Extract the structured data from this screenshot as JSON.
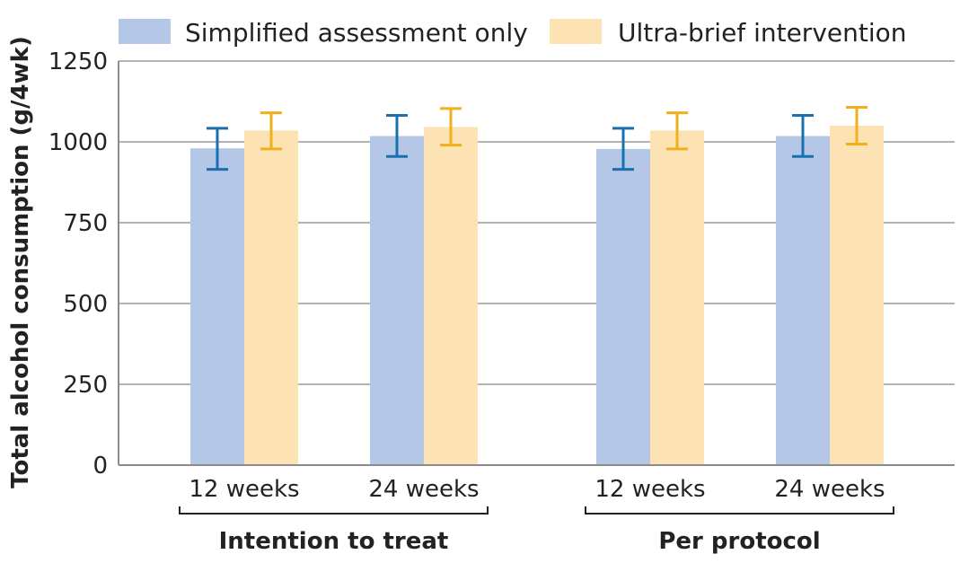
{
  "chart_data": {
    "type": "bar",
    "ylabel": "Total alcohol consumption (g/4wk)",
    "ylim": [
      0,
      1250
    ],
    "yticks": [
      0,
      250,
      500,
      750,
      1000,
      1250
    ],
    "grid": true,
    "legend": "top",
    "groups": [
      {
        "label": "Intention to treat",
        "categories": [
          "12 weeks",
          "24 weeks"
        ]
      },
      {
        "label": "Per protocol",
        "categories": [
          "12 weeks",
          "24 weeks"
        ]
      }
    ],
    "series": [
      {
        "name": "Simplified assessment only",
        "color": "#b4c7e7",
        "error_color": "#1a6faf",
        "values": [
          980,
          1018,
          978,
          1018
        ],
        "ci_low": [
          915,
          955,
          915,
          955
        ],
        "ci_high": [
          1042,
          1082,
          1042,
          1082
        ]
      },
      {
        "name": "Ultra-brief intervention",
        "color": "#fde3b4",
        "error_color": "#f0b01e",
        "values": [
          1035,
          1046,
          1035,
          1050
        ],
        "ci_low": [
          978,
          990,
          978,
          993
        ],
        "ci_high": [
          1090,
          1103,
          1090,
          1107
        ]
      }
    ]
  }
}
